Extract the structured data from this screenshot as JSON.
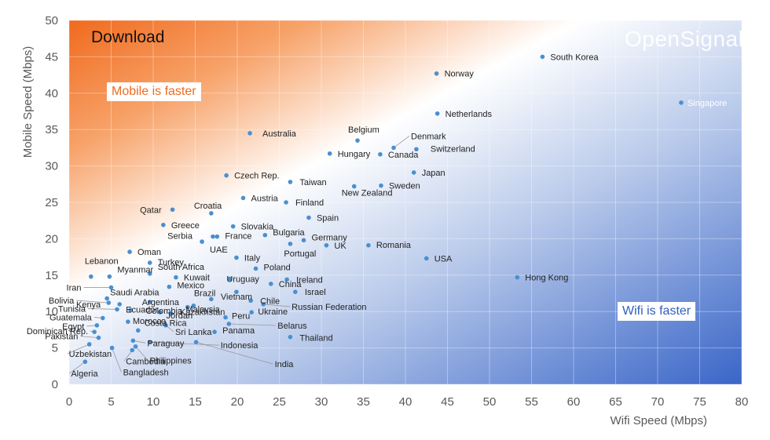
{
  "chart_data": {
    "type": "scatter",
    "title": "Download",
    "brand": "OpenSignal",
    "xlabel": "Wifi Speed (Mbps)",
    "ylabel": "Mobile Speed (Mbps)",
    "xlim": [
      0,
      80
    ],
    "ylim": [
      0,
      50
    ],
    "xticks": [
      0,
      5,
      10,
      15,
      20,
      25,
      30,
      35,
      40,
      45,
      50,
      55,
      60,
      65,
      70,
      75,
      80
    ],
    "yticks": [
      0,
      5,
      10,
      15,
      20,
      25,
      30,
      35,
      40,
      45,
      50
    ],
    "grid": true,
    "annotations": {
      "mobile_faster": "Mobile is faster",
      "wifi_faster": "Wifi is faster"
    },
    "colors": {
      "marker": "#4a8fd0",
      "orange": "#f06a1e",
      "blue": "#3a66c8"
    },
    "points": [
      {
        "label": "South Korea",
        "x": 56.3,
        "y": 45.0
      },
      {
        "label": "Norway",
        "x": 43.7,
        "y": 42.7
      },
      {
        "label": "Singapore",
        "x": 72.8,
        "y": 38.7
      },
      {
        "label": "Netherlands",
        "x": 43.8,
        "y": 37.2
      },
      {
        "label": "Australia",
        "x": 21.5,
        "y": 34.5
      },
      {
        "label": "Belgium",
        "x": 34.3,
        "y": 33.5
      },
      {
        "label": "Denmark",
        "x": 38.6,
        "y": 32.5
      },
      {
        "label": "Switzerland",
        "x": 41.3,
        "y": 32.3
      },
      {
        "label": "Hungary",
        "x": 31.0,
        "y": 31.7
      },
      {
        "label": "Canada",
        "x": 37.0,
        "y": 31.6
      },
      {
        "label": "Japan",
        "x": 41.0,
        "y": 29.1
      },
      {
        "label": "Czech Rep.",
        "x": 18.7,
        "y": 28.7
      },
      {
        "label": "Taiwan",
        "x": 26.3,
        "y": 27.8
      },
      {
        "label": "Sweden",
        "x": 37.1,
        "y": 27.3
      },
      {
        "label": "New Zealand",
        "x": 33.9,
        "y": 27.2
      },
      {
        "label": "Austria",
        "x": 20.7,
        "y": 25.6
      },
      {
        "label": "Finland",
        "x": 25.8,
        "y": 25.0
      },
      {
        "label": "Qatar",
        "x": 12.3,
        "y": 24.0
      },
      {
        "label": "Croatia",
        "x": 16.9,
        "y": 23.5
      },
      {
        "label": "Spain",
        "x": 28.5,
        "y": 22.9
      },
      {
        "label": "Greece",
        "x": 11.2,
        "y": 21.9
      },
      {
        "label": "Slovakia",
        "x": 19.5,
        "y": 21.7
      },
      {
        "label": "Serbia",
        "x": 17.1,
        "y": 20.3
      },
      {
        "label": "France",
        "x": 17.6,
        "y": 20.3
      },
      {
        "label": "Bulgaria",
        "x": 23.3,
        "y": 20.5
      },
      {
        "label": "Germany",
        "x": 27.9,
        "y": 19.8
      },
      {
        "label": "UAE",
        "x": 15.8,
        "y": 19.6
      },
      {
        "label": "Portugal",
        "x": 26.3,
        "y": 19.3
      },
      {
        "label": "UK",
        "x": 30.6,
        "y": 19.1
      },
      {
        "label": "Romania",
        "x": 35.6,
        "y": 19.1
      },
      {
        "label": "Oman",
        "x": 7.2,
        "y": 18.2
      },
      {
        "label": "Italy",
        "x": 19.9,
        "y": 17.4
      },
      {
        "label": "USA",
        "x": 42.5,
        "y": 17.3
      },
      {
        "label": "Turkey",
        "x": 9.6,
        "y": 16.7
      },
      {
        "label": "Poland",
        "x": 22.2,
        "y": 15.9
      },
      {
        "label": "South Africa",
        "x": 9.6,
        "y": 15.2
      },
      {
        "label": "Lebanon",
        "x": 2.6,
        "y": 14.8
      },
      {
        "label": "Myanmar",
        "x": 4.8,
        "y": 14.8
      },
      {
        "label": "Kuwait",
        "x": 12.7,
        "y": 14.7
      },
      {
        "label": "Uruguay",
        "x": 19.1,
        "y": 14.5
      },
      {
        "label": "Ireland",
        "x": 25.9,
        "y": 14.4
      },
      {
        "label": "Hong Kong",
        "x": 53.3,
        "y": 14.7
      },
      {
        "label": "China",
        "x": 24.0,
        "y": 13.8
      },
      {
        "label": "Mexico",
        "x": 11.9,
        "y": 13.4
      },
      {
        "label": "Iran",
        "x": 5.0,
        "y": 13.3
      },
      {
        "label": "Israel",
        "x": 26.9,
        "y": 12.7
      },
      {
        "label": "Vietnam",
        "x": 19.9,
        "y": 12.7
      },
      {
        "label": "Saudi Arabia",
        "x": 4.5,
        "y": 11.8
      },
      {
        "label": "Brazil",
        "x": 16.9,
        "y": 11.7
      },
      {
        "label": "Bolivia",
        "x": 4.7,
        "y": 11.2
      },
      {
        "label": "Argentina",
        "x": 9.6,
        "y": 11.3
      },
      {
        "label": "Chile",
        "x": 21.6,
        "y": 11.5
      },
      {
        "label": "Kenya",
        "x": 6.0,
        "y": 11.0
      },
      {
        "label": "Malaysia",
        "x": 14.8,
        "y": 10.8
      },
      {
        "label": "Russian Federation",
        "x": 23.1,
        "y": 11.0
      },
      {
        "label": "Tunisia",
        "x": 5.7,
        "y": 10.3
      },
      {
        "label": "Ecuador",
        "x": 7.3,
        "y": 10.2
      },
      {
        "label": "Colombia",
        "x": 10.8,
        "y": 9.9
      },
      {
        "label": "Kazakhstan",
        "x": 14.1,
        "y": 10.6
      },
      {
        "label": "Ukraine",
        "x": 21.7,
        "y": 9.9
      },
      {
        "label": "Jordan",
        "x": 12.1,
        "y": 9.7
      },
      {
        "label": "Guatemala",
        "x": 4.0,
        "y": 9.1
      },
      {
        "label": "Peru",
        "x": 18.6,
        "y": 9.2
      },
      {
        "label": "Morocco",
        "x": 7.0,
        "y": 8.6
      },
      {
        "label": "Egypt",
        "x": 3.3,
        "y": 8.1
      },
      {
        "label": "Sri Lanka",
        "x": 11.5,
        "y": 8.1
      },
      {
        "label": "Belarus",
        "x": 19.0,
        "y": 8.3
      },
      {
        "label": "Costa Rica",
        "x": 8.2,
        "y": 7.4
      },
      {
        "label": "Panama",
        "x": 17.3,
        "y": 7.2
      },
      {
        "label": "Dominican Rep.",
        "x": 3.0,
        "y": 7.2
      },
      {
        "label": "Thailand",
        "x": 26.3,
        "y": 6.5
      },
      {
        "label": "Pakistan",
        "x": 3.5,
        "y": 6.4
      },
      {
        "label": "Paraguay",
        "x": 7.6,
        "y": 6.0
      },
      {
        "label": "Indonesia",
        "x": 9.6,
        "y": 5.8
      },
      {
        "label": "Uzbekistan",
        "x": 2.4,
        "y": 5.5
      },
      {
        "label": "Philippines",
        "x": 7.9,
        "y": 5.2
      },
      {
        "label": "Bangladesh",
        "x": 5.1,
        "y": 5.0
      },
      {
        "label": "Cambodia",
        "x": 7.5,
        "y": 4.7
      },
      {
        "label": "India",
        "x": 15.1,
        "y": 5.8
      },
      {
        "label": "Algeria",
        "x": 1.9,
        "y": 3.1
      }
    ]
  }
}
